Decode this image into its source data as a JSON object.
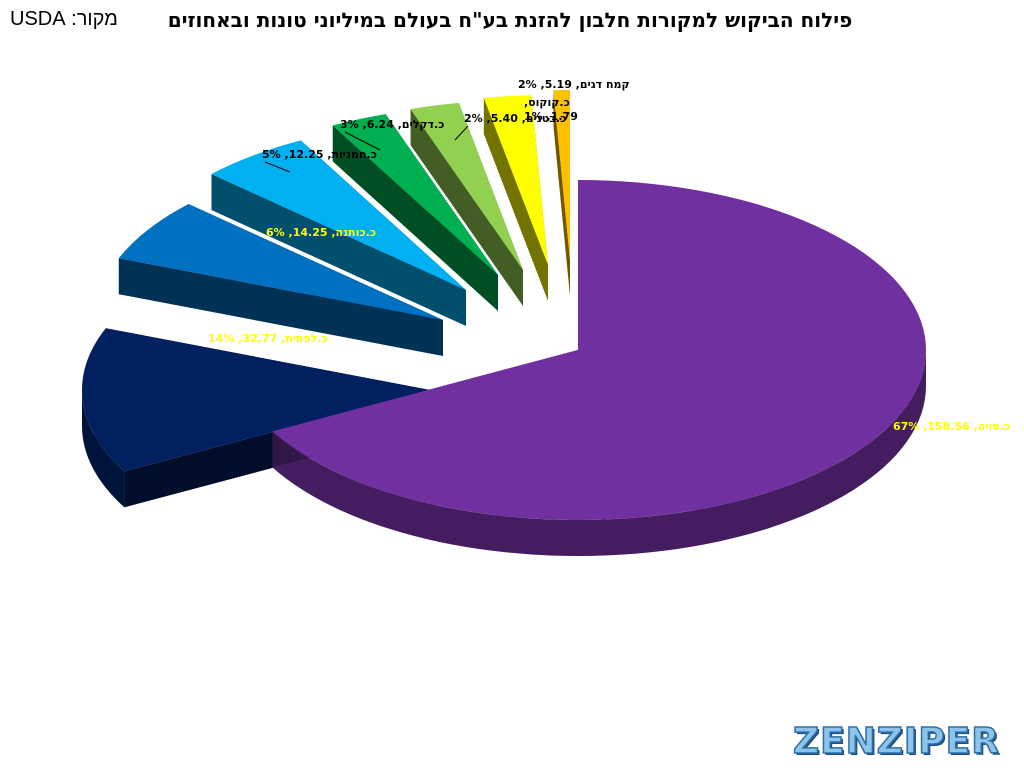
{
  "title": "פילוח הביקוש למקורות חלבון להזנת בע\"ח בעולם במיליוני טונות ובאחוזים",
  "source": "מקור: USDA",
  "logo": "ZENZIPER",
  "chart_data": {
    "type": "pie",
    "title": "פילוח הביקוש למקורות חלבון להזנת בע\"ח בעולם במיליוני טונות ובאחוזים",
    "categories": [
      "כ.סויה",
      "כ.לפתית",
      "כ.כותנה",
      "כ.חמניות",
      "כ.דקלים",
      "כ.בטנים",
      "קמח דגים",
      "כ.קוקוס"
    ],
    "values": [
      158.56,
      32.77,
      14.25,
      12.25,
      6.24,
      5.4,
      5.19,
      1.79
    ],
    "percents": [
      "67%",
      "14%",
      "6%",
      "5%",
      "3%",
      "2%",
      "2%",
      "1%"
    ],
    "value_labels": [
      "158.56",
      "32.77",
      "14.25",
      "12.25",
      "6.24",
      "5.40",
      "5.19",
      "1.79"
    ],
    "colors": [
      "#7030a0",
      "#002060",
      "#0070c0",
      "#00b0f0",
      "#00b050",
      "#92d050",
      "#ffff00",
      "#ffc000"
    ],
    "label_colors": [
      "#ffff00",
      "#ffff00",
      "#ffff00",
      "#000000",
      "#000000",
      "#000000",
      "#000000",
      "#000000"
    ],
    "legend": "none",
    "exploded": true
  }
}
